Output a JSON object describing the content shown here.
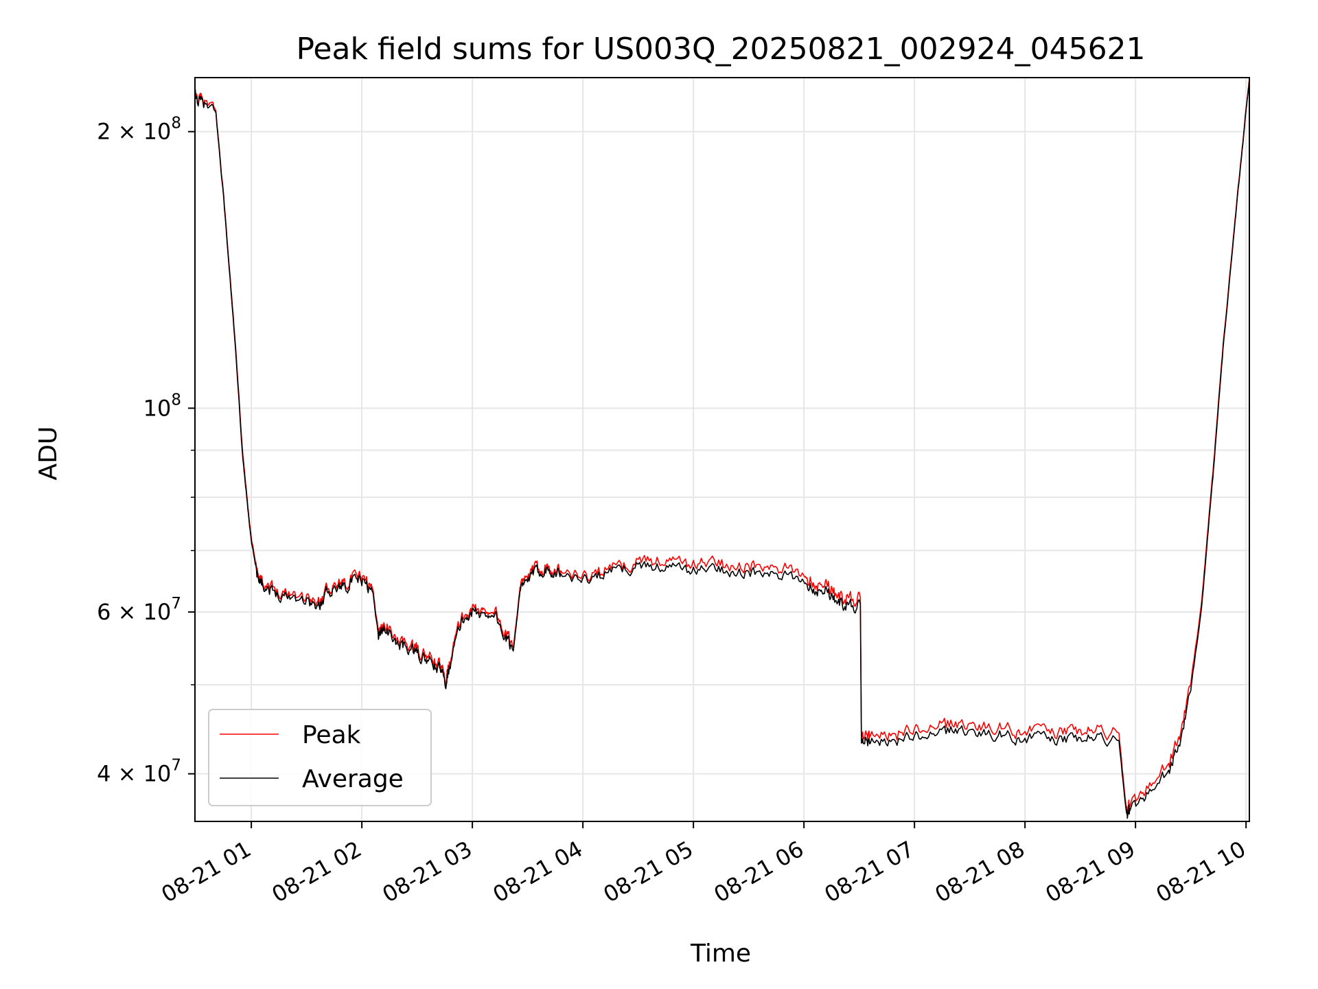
{
  "chart_data": {
    "type": "line",
    "title": "Peak field sums for US003Q_20250821_002924_045621",
    "xlabel": "Time",
    "ylabel": "ADU",
    "yscale": "log",
    "ylim": [
      35500000,
      229000000
    ],
    "xlim_hours": [
      0.49,
      10.03
    ],
    "grid": true,
    "legend_location": "lower-left",
    "x_unit": "hours since 2025-08-21 00:00",
    "x_ticks": [
      {
        "value": 1,
        "label": "08-21 01"
      },
      {
        "value": 2,
        "label": "08-21 02"
      },
      {
        "value": 3,
        "label": "08-21 03"
      },
      {
        "value": 4,
        "label": "08-21 04"
      },
      {
        "value": 5,
        "label": "08-21 05"
      },
      {
        "value": 6,
        "label": "08-21 06"
      },
      {
        "value": 7,
        "label": "08-21 07"
      },
      {
        "value": 8,
        "label": "08-21 08"
      },
      {
        "value": 9,
        "label": "08-21 09"
      },
      {
        "value": 10,
        "label": "08-21 10"
      }
    ],
    "y_ticks": [
      {
        "value": 40000000,
        "mantissa": "4",
        "exponent": "7"
      },
      {
        "value": 60000000,
        "mantissa": "6",
        "exponent": "7"
      },
      {
        "value": 100000000,
        "mantissa": "",
        "exponent": "8"
      },
      {
        "value": 200000000,
        "mantissa": "2",
        "exponent": "8"
      }
    ],
    "y_minor_ticks": [
      50000000,
      70000000,
      80000000,
      90000000
    ],
    "series": [
      {
        "name": "Peak",
        "color": "#ff0000",
        "noise": 0.012,
        "x": [
          0.49,
          0.55,
          0.68,
          0.75,
          0.85,
          0.92,
          0.97,
          1.0,
          1.05,
          1.1,
          1.2,
          1.35,
          1.5,
          1.6,
          1.7,
          1.8,
          1.9,
          2.0,
          2.1,
          2.15,
          2.2,
          2.3,
          2.4,
          2.5,
          2.6,
          2.7,
          2.76,
          2.8,
          2.9,
          3.0,
          3.1,
          3.2,
          3.3,
          3.37,
          3.43,
          3.5,
          3.6,
          3.7,
          3.8,
          4.0,
          4.2,
          4.4,
          4.6,
          4.8,
          5.0,
          5.2,
          5.4,
          5.6,
          5.8,
          6.0,
          6.1,
          6.2,
          6.3,
          6.4,
          6.5,
          6.51,
          6.52,
          6.6,
          6.8,
          7.0,
          7.2,
          7.4,
          7.6,
          7.8,
          8.0,
          8.2,
          8.4,
          8.6,
          8.85,
          8.92,
          8.95,
          9.1,
          9.3,
          9.4,
          9.5,
          9.6,
          9.7,
          9.8,
          9.9,
          10.0,
          10.03
        ],
        "y": [
          218000000,
          216000000,
          210000000,
          170000000,
          120000000,
          90000000,
          78000000,
          72000000,
          67000000,
          65000000,
          63500000,
          63000000,
          62500000,
          61000000,
          64000000,
          64500000,
          65000000,
          65500000,
          63500000,
          57000000,
          58500000,
          56000000,
          55500000,
          54500000,
          53500000,
          52500000,
          51000000,
          53500000,
          59000000,
          60500000,
          60000000,
          60500000,
          56500000,
          55000000,
          63500000,
          65500000,
          67000000,
          67500000,
          66500000,
          65500000,
          66500000,
          67500000,
          68500000,
          68000000,
          67500000,
          68000000,
          67500000,
          67000000,
          66500000,
          66000000,
          64500000,
          64500000,
          62500000,
          62000000,
          62000000,
          62000000,
          43500000,
          44000000,
          44200000,
          44500000,
          44700000,
          45500000,
          45000000,
          44800000,
          44600000,
          44500000,
          44300000,
          44600000,
          44300000,
          36300000,
          37000000,
          38500000,
          41000000,
          44000000,
          50000000,
          62000000,
          85000000,
          120000000,
          160000000,
          212000000,
          229000000
        ]
      },
      {
        "name": "Average",
        "color": "#000000",
        "noise": 0.011,
        "x": [
          0.49,
          0.55,
          0.68,
          0.75,
          0.85,
          0.92,
          0.97,
          1.0,
          1.05,
          1.1,
          1.2,
          1.35,
          1.5,
          1.6,
          1.7,
          1.8,
          1.9,
          2.0,
          2.1,
          2.15,
          2.2,
          2.3,
          2.4,
          2.5,
          2.6,
          2.7,
          2.76,
          2.8,
          2.9,
          3.0,
          3.1,
          3.2,
          3.3,
          3.37,
          3.43,
          3.5,
          3.6,
          3.7,
          3.8,
          4.0,
          4.2,
          4.4,
          4.6,
          4.8,
          5.0,
          5.2,
          5.4,
          5.6,
          5.8,
          6.0,
          6.1,
          6.2,
          6.3,
          6.4,
          6.5,
          6.51,
          6.52,
          6.6,
          6.8,
          7.0,
          7.2,
          7.4,
          7.6,
          7.8,
          8.0,
          8.2,
          8.4,
          8.6,
          8.85,
          8.92,
          8.95,
          9.1,
          9.3,
          9.4,
          9.5,
          9.6,
          9.7,
          9.8,
          9.9,
          10.0,
          10.03
        ],
        "y": [
          217000000,
          215000000,
          209000000,
          169000000,
          119000000,
          89000000,
          77500000,
          71500000,
          66500000,
          64500000,
          63000000,
          62500000,
          62000000,
          60500000,
          63500000,
          64000000,
          64500000,
          65000000,
          63000000,
          56500000,
          58000000,
          55500000,
          55000000,
          54000000,
          53000000,
          52000000,
          50500000,
          53000000,
          58500000,
          60000000,
          59500000,
          60000000,
          56000000,
          54500000,
          63000000,
          65000000,
          66500000,
          67000000,
          66000000,
          65000000,
          66000000,
          67000000,
          67500000,
          67000000,
          66500000,
          67000000,
          66500000,
          66000000,
          65500000,
          65000000,
          63500000,
          63500000,
          61500000,
          61000000,
          61000000,
          61000000,
          43000000,
          43300000,
          43500000,
          43800000,
          44000000,
          44800000,
          44300000,
          44000000,
          43800000,
          43700000,
          43500000,
          43800000,
          43500000,
          36000000,
          36600000,
          38000000,
          40300000,
          43200000,
          49200000,
          61200000,
          84000000,
          119000000,
          159000000,
          211000000,
          228000000
        ]
      }
    ]
  }
}
